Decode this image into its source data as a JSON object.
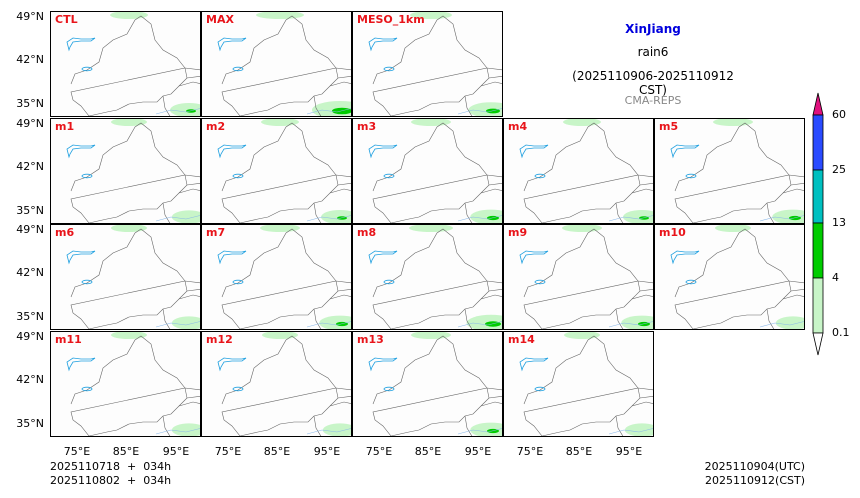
{
  "title": {
    "region": "XinJiang",
    "variable": "rain6",
    "period": "(2025110906-2025110912 CST)",
    "model": "CMA-REPS"
  },
  "panels": [
    {
      "label": "CTL",
      "row": 0,
      "col": 0,
      "rain": 0.5
    },
    {
      "label": "MAX",
      "row": 0,
      "col": 1,
      "rain": 1.0
    },
    {
      "label": "MESO_1km",
      "row": 0,
      "col": 2,
      "rain": 0.7
    },
    {
      "label": "m1",
      "row": 1,
      "col": 0,
      "rain": 0.4
    },
    {
      "label": "m2",
      "row": 1,
      "col": 1,
      "rain": 0.5
    },
    {
      "label": "m3",
      "row": 1,
      "col": 2,
      "rain": 0.6
    },
    {
      "label": "m4",
      "row": 1,
      "col": 3,
      "rain": 0.5
    },
    {
      "label": "m5",
      "row": 1,
      "col": 4,
      "rain": 0.6
    },
    {
      "label": "m6",
      "row": 2,
      "col": 0,
      "rain": 0.4
    },
    {
      "label": "m7",
      "row": 2,
      "col": 1,
      "rain": 0.6
    },
    {
      "label": "m8",
      "row": 2,
      "col": 2,
      "rain": 0.8
    },
    {
      "label": "m9",
      "row": 2,
      "col": 3,
      "rain": 0.6
    },
    {
      "label": "m10",
      "row": 2,
      "col": 4,
      "rain": 0.4
    },
    {
      "label": "m11",
      "row": 3,
      "col": 0,
      "rain": 0.4
    },
    {
      "label": "m12",
      "row": 3,
      "col": 1,
      "rain": 0.4
    },
    {
      "label": "m13",
      "row": 3,
      "col": 2,
      "rain": 0.6
    },
    {
      "label": "m14",
      "row": 3,
      "col": 3,
      "rain": 0.4
    }
  ],
  "lat_ticks": [
    "49°N",
    "42°N",
    "35°N"
  ],
  "lon_ticks": [
    "75°E",
    "85°E",
    "95°E"
  ],
  "colorbar": {
    "levels": [
      "0.1",
      "4",
      "13",
      "25",
      "60"
    ],
    "colors": [
      "#c8f5c8",
      "#00cc00",
      "#00c0c0",
      "#2a4bff"
    ],
    "over_color": "#e0117f",
    "under_color": "#ffffff"
  },
  "footer": {
    "left_line1": "2025110718  +  034h",
    "left_line2": "2025110802  +  034h",
    "right_line1": "2025110904(UTC)",
    "right_line2": "2025110912(CST)"
  },
  "colors": {
    "label": "#e8141a",
    "region_title": "#0000dd",
    "model": "#888888"
  }
}
